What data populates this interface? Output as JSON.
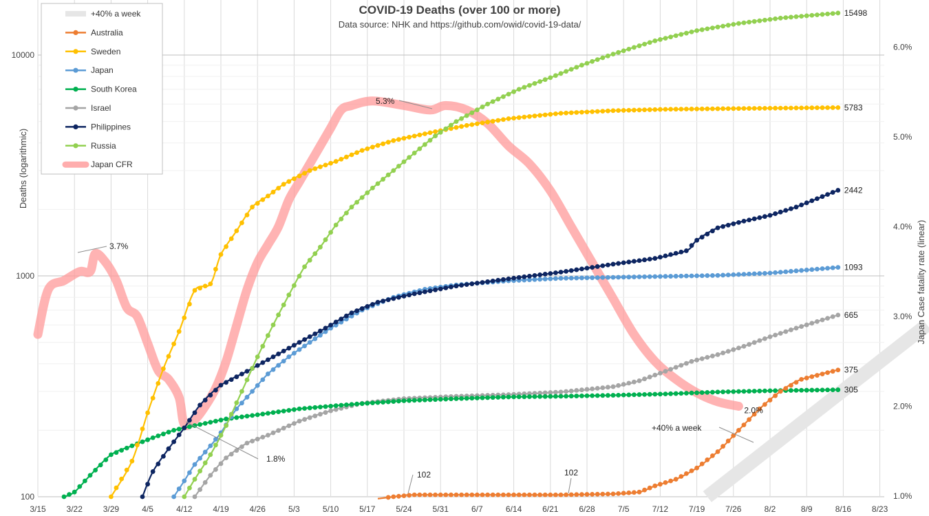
{
  "chart_data": {
    "type": "line",
    "title": "COVID-19  Deaths (over 100 or more)",
    "subtitle": "Data source: NHK and https://github.com/owid/covid-19-data/",
    "ylabel": "Deaths (logarithmic)",
    "y2label": "Japan Case fatality rate (linear)",
    "y_scale": "log",
    "ylim": [
      100,
      20000
    ],
    "y_ticks": [
      "100",
      "1000",
      "10000"
    ],
    "y2lim": [
      1.0,
      6.0
    ],
    "y2_ticks": [
      "1.0%",
      "2.0%",
      "3.0%",
      "4.0%",
      "5.0%",
      "6.0%"
    ],
    "x_ticks": [
      "3/15",
      "3/22",
      "3/29",
      "4/5",
      "4/12",
      "4/19",
      "4/26",
      "5/3",
      "5/10",
      "5/17",
      "5/24",
      "5/31",
      "6/7",
      "6/14",
      "6/21",
      "6/28",
      "7/5",
      "7/12",
      "7/19",
      "7/26",
      "8/2",
      "8/9",
      "8/16",
      "8/23"
    ],
    "grid": true,
    "legend_position": "top-left",
    "series": [
      {
        "name": "+40% a week",
        "color": "#e6e6e6",
        "style": "band",
        "points": [
          [
            128,
            100
          ],
          [
            170,
            600
          ]
        ]
      },
      {
        "name": "Australia",
        "color": "#ed7d31",
        "axis": "left",
        "points": [
          [
            65,
            98
          ],
          [
            68,
            100
          ],
          [
            70,
            101
          ],
          [
            72,
            102
          ],
          [
            90,
            102
          ],
          [
            100,
            102
          ],
          [
            110,
            103
          ],
          [
            115,
            105
          ],
          [
            118,
            112
          ],
          [
            122,
            120
          ],
          [
            126,
            135
          ],
          [
            130,
            160
          ],
          [
            134,
            200
          ],
          [
            138,
            250
          ],
          [
            142,
            300
          ],
          [
            146,
            340
          ],
          [
            153,
            375
          ]
        ],
        "end_label": "375"
      },
      {
        "name": "Sweden",
        "color": "#ffc000",
        "axis": "left",
        "points": [
          [
            14,
            100
          ],
          [
            18,
            145
          ],
          [
            21,
            240
          ],
          [
            24,
            380
          ],
          [
            27,
            560
          ],
          [
            30,
            860
          ],
          [
            33,
            920
          ],
          [
            35,
            1250
          ],
          [
            38,
            1600
          ],
          [
            41,
            2050
          ],
          [
            44,
            2300
          ],
          [
            47,
            2600
          ],
          [
            52,
            3000
          ],
          [
            57,
            3300
          ],
          [
            62,
            3700
          ],
          [
            68,
            4100
          ],
          [
            75,
            4450
          ],
          [
            82,
            4800
          ],
          [
            90,
            5150
          ],
          [
            100,
            5450
          ],
          [
            110,
            5600
          ],
          [
            120,
            5680
          ],
          [
            135,
            5730
          ],
          [
            153,
            5783
          ]
        ],
        "end_label": "5783"
      },
      {
        "name": "Japan",
        "color": "#5b9bd5",
        "axis": "left",
        "points": [
          [
            26,
            100
          ],
          [
            28,
            118
          ],
          [
            30,
            140
          ],
          [
            33,
            170
          ],
          [
            35,
            195
          ],
          [
            38,
            250
          ],
          [
            41,
            300
          ],
          [
            44,
            360
          ],
          [
            48,
            430
          ],
          [
            52,
            500
          ],
          [
            56,
            580
          ],
          [
            62,
            700
          ],
          [
            68,
            800
          ],
          [
            74,
            870
          ],
          [
            80,
            910
          ],
          [
            90,
            950
          ],
          [
            100,
            975
          ],
          [
            110,
            985
          ],
          [
            120,
            995
          ],
          [
            130,
            1005
          ],
          [
            140,
            1030
          ],
          [
            153,
            1093
          ]
        ],
        "end_label": "1093"
      },
      {
        "name": "South Korea",
        "color": "#00b050",
        "axis": "left",
        "points": [
          [
            5,
            100
          ],
          [
            7,
            105
          ],
          [
            10,
            125
          ],
          [
            14,
            155
          ],
          [
            18,
            170
          ],
          [
            22,
            185
          ],
          [
            26,
            200
          ],
          [
            30,
            210
          ],
          [
            36,
            225
          ],
          [
            42,
            235
          ],
          [
            50,
            250
          ],
          [
            60,
            262
          ],
          [
            70,
            272
          ],
          [
            80,
            278
          ],
          [
            90,
            283
          ],
          [
            100,
            285
          ],
          [
            110,
            288
          ],
          [
            120,
            292
          ],
          [
            130,
            298
          ],
          [
            140,
            302
          ],
          [
            153,
            305
          ]
        ],
        "end_label": "305"
      },
      {
        "name": "Israel",
        "color": "#a5a5a5",
        "axis": "left",
        "points": [
          [
            30,
            100
          ],
          [
            33,
            125
          ],
          [
            36,
            150
          ],
          [
            40,
            175
          ],
          [
            44,
            190
          ],
          [
            50,
            220
          ],
          [
            56,
            245
          ],
          [
            62,
            265
          ],
          [
            70,
            278
          ],
          [
            80,
            285
          ],
          [
            90,
            290
          ],
          [
            100,
            298
          ],
          [
            110,
            315
          ],
          [
            115,
            335
          ],
          [
            120,
            370
          ],
          [
            125,
            410
          ],
          [
            130,
            440
          ],
          [
            135,
            480
          ],
          [
            140,
            530
          ],
          [
            145,
            580
          ],
          [
            153,
            665
          ]
        ],
        "end_label": "665"
      },
      {
        "name": "Philippines",
        "color": "#0d2561",
        "axis": "left",
        "points": [
          [
            20,
            100
          ],
          [
            22,
            130
          ],
          [
            25,
            165
          ],
          [
            28,
            205
          ],
          [
            31,
            260
          ],
          [
            35,
            320
          ],
          [
            40,
            370
          ],
          [
            45,
            430
          ],
          [
            50,
            500
          ],
          [
            55,
            580
          ],
          [
            60,
            680
          ],
          [
            65,
            760
          ],
          [
            72,
            830
          ],
          [
            80,
            900
          ],
          [
            90,
            970
          ],
          [
            100,
            1040
          ],
          [
            110,
            1130
          ],
          [
            118,
            1200
          ],
          [
            124,
            1300
          ],
          [
            126,
            1450
          ],
          [
            130,
            1650
          ],
          [
            135,
            1770
          ],
          [
            140,
            1880
          ],
          [
            145,
            2050
          ],
          [
            153,
            2442
          ]
        ],
        "end_label": "2442"
      },
      {
        "name": "Russia",
        "color": "#92d050",
        "axis": "left",
        "points": [
          [
            28,
            100
          ],
          [
            30,
            120
          ],
          [
            33,
            155
          ],
          [
            36,
            210
          ],
          [
            39,
            300
          ],
          [
            42,
            430
          ],
          [
            45,
            600
          ],
          [
            48,
            820
          ],
          [
            51,
            1100
          ],
          [
            54,
            1350
          ],
          [
            57,
            1700
          ],
          [
            60,
            2050
          ],
          [
            64,
            2500
          ],
          [
            68,
            3000
          ],
          [
            72,
            3600
          ],
          [
            76,
            4300
          ],
          [
            80,
            5000
          ],
          [
            86,
            6000
          ],
          [
            92,
            7000
          ],
          [
            98,
            7900
          ],
          [
            104,
            9000
          ],
          [
            110,
            10100
          ],
          [
            118,
            11600
          ],
          [
            126,
            12900
          ],
          [
            134,
            13900
          ],
          [
            142,
            14700
          ],
          [
            153,
            15498
          ]
        ],
        "end_label": "15498"
      },
      {
        "name": "Japan CFR",
        "color": "#ff9999",
        "axis": "right",
        "points": [
          [
            0,
            2.8
          ],
          [
            2,
            3.3
          ],
          [
            5,
            3.4
          ],
          [
            8,
            3.5
          ],
          [
            10,
            3.5
          ],
          [
            11,
            3.7
          ],
          [
            13,
            3.6
          ],
          [
            15,
            3.4
          ],
          [
            17,
            3.1
          ],
          [
            19,
            3.0
          ],
          [
            21,
            2.7
          ],
          [
            23,
            2.4
          ],
          [
            25,
            2.3
          ],
          [
            27,
            2.1
          ],
          [
            28,
            1.8
          ],
          [
            30,
            1.85
          ],
          [
            32,
            2.0
          ],
          [
            34,
            2.2
          ],
          [
            36,
            2.5
          ],
          [
            38,
            2.9
          ],
          [
            40,
            3.3
          ],
          [
            42,
            3.6
          ],
          [
            44,
            3.8
          ],
          [
            46,
            4.0
          ],
          [
            48,
            4.3
          ],
          [
            50,
            4.5
          ],
          [
            52,
            4.7
          ],
          [
            54,
            4.9
          ],
          [
            56,
            5.1
          ],
          [
            58,
            5.3
          ],
          [
            60,
            5.35
          ],
          [
            64,
            5.4
          ],
          [
            70,
            5.35
          ],
          [
            75,
            5.3
          ],
          [
            78,
            5.35
          ],
          [
            82,
            5.3
          ],
          [
            86,
            5.15
          ],
          [
            90,
            4.9
          ],
          [
            94,
            4.7
          ],
          [
            98,
            4.4
          ],
          [
            102,
            4.0
          ],
          [
            106,
            3.6
          ],
          [
            110,
            3.2
          ],
          [
            114,
            2.8
          ],
          [
            118,
            2.5
          ],
          [
            122,
            2.3
          ],
          [
            126,
            2.15
          ],
          [
            130,
            2.05
          ],
          [
            134,
            2.0
          ]
        ],
        "end_label": "2.0%"
      }
    ],
    "annotations": [
      {
        "text": "3.7%"
      },
      {
        "text": "1.8%"
      },
      {
        "text": "5.3%"
      },
      {
        "text": "102"
      },
      {
        "text": "102"
      },
      {
        "text": "+40% a week"
      }
    ]
  }
}
